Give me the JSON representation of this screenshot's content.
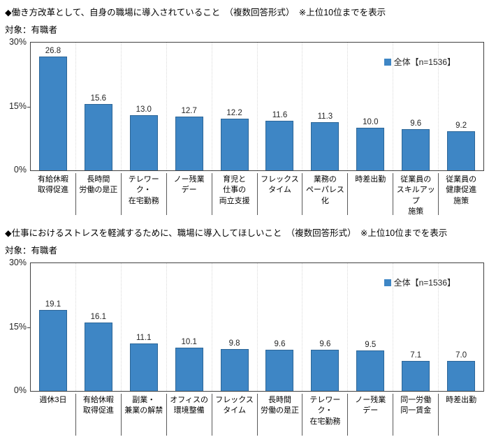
{
  "colors": {
    "bar_fill": "#3E86C5",
    "bar_border": "#2B6597",
    "plot_border": "#404040",
    "gridline": "#D9D9D9",
    "separator": "#595959"
  },
  "chart_data": [
    {
      "type": "bar",
      "title": "◆働き方改革として、自身の職場に導入されていること　（複数回答形式）　※上位10位までを表示",
      "subject": "対象：有職者",
      "legend": "全体【n=1536】",
      "legend_position": "top-right-inside",
      "grid": "vertical-category-separators",
      "ylim": [
        0,
        30
      ],
      "yticks": [
        "30%",
        "15%",
        "0%"
      ],
      "categories": [
        "有給休暇\n取得促進",
        "長時間\n労働の是正",
        "テレワーク・\n在宅勤務",
        "ノー残業\nデー",
        "育児と\n仕事の\n両立支援",
        "フレックス\nタイム",
        "業務の\nペーパレス化",
        "時差出勤",
        "従業員の\nスキルアップ\n施策",
        "従業員の\n健康促進\n施策"
      ],
      "values": [
        26.8,
        15.6,
        13.0,
        12.7,
        12.2,
        11.6,
        11.3,
        10.0,
        9.6,
        9.2
      ]
    },
    {
      "type": "bar",
      "title": "◆仕事におけるストレスを軽減するために、職場に導入してほしいこと　（複数回答形式）　※上位10位までを表示",
      "subject": "対象：有職者",
      "legend": "全体【n=1536】",
      "legend_position": "top-right-inside",
      "grid": "vertical-category-separators",
      "ylim": [
        0,
        30
      ],
      "yticks": [
        "30%",
        "15%",
        "0%"
      ],
      "categories": [
        "週休3日",
        "有給休暇\n取得促進",
        "副業・\n兼業の解禁",
        "オフィスの\n環境整備",
        "フレックス\nタイム",
        "長時間\n労働の是正",
        "テレワーク・\n在宅勤務",
        "ノー残業\nデー",
        "同一労働\n同一賃金",
        "時差出勤"
      ],
      "values": [
        19.1,
        16.1,
        11.1,
        10.1,
        9.8,
        9.6,
        9.6,
        9.5,
        7.1,
        7.0
      ]
    }
  ]
}
